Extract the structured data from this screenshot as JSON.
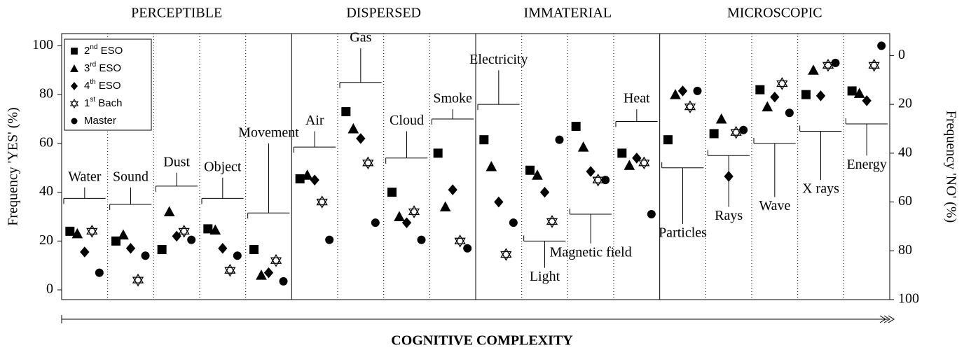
{
  "chart_data": {
    "type": "scatter",
    "ylabel": "Frequency 'YES' (%)",
    "y2label": "Frequency 'NO' (%)",
    "xlabel": "COGNITIVE COMPLEXITY",
    "groups": [
      {
        "name": "PERCEPTIBLE",
        "categories": [
          "Water",
          "Sound",
          "Dust",
          "Object",
          "Movement"
        ]
      },
      {
        "name": "DISPERSED",
        "categories": [
          "Air",
          "Gas",
          "Cloud",
          "Smoke"
        ]
      },
      {
        "name": "IMMATERIAL",
        "categories": [
          "Electricity",
          "Light",
          "Magnetic field",
          "Heat"
        ]
      },
      {
        "name": "MICROSCOPIC",
        "categories": [
          "Particles",
          "Rays",
          "Wave",
          "X rays",
          "Energy"
        ]
      }
    ],
    "series": [
      {
        "name": "2nd ESO",
        "marker": "square",
        "color": "#000000",
        "values": [
          24,
          20,
          16.5,
          25,
          16.5,
          45.5,
          73,
          40,
          56,
          61.5,
          49,
          67,
          56,
          61.5,
          64,
          82,
          80,
          81.5
        ]
      },
      {
        "name": "3rd ESO",
        "marker": "triangle",
        "color": "#000000",
        "values": [
          23,
          22.5,
          32,
          24.5,
          6,
          47,
          66,
          30,
          34,
          50.5,
          47,
          58.5,
          51,
          80,
          70,
          75,
          90,
          80.5
        ]
      },
      {
        "name": "4th ESO",
        "marker": "diamond",
        "color": "#000000",
        "values": [
          15.5,
          17,
          22,
          17,
          7,
          45,
          62,
          27.5,
          41,
          36,
          40,
          48.5,
          54,
          81.5,
          46.5,
          79,
          79.5,
          77.5
        ]
      },
      {
        "name": "1st Bach",
        "marker": "star",
        "color": "#000000",
        "values": [
          24,
          4,
          24,
          8,
          12,
          36,
          52,
          32,
          20,
          14.5,
          28,
          45,
          52,
          75,
          64.5,
          84.5,
          92,
          92
        ]
      },
      {
        "name": "Master",
        "marker": "circle",
        "color": "#000000",
        "values": [
          7,
          14,
          20.5,
          14,
          3.5,
          20.5,
          27.5,
          20.5,
          17,
          27.5,
          61.5,
          45,
          31,
          81.5,
          65.5,
          72.5,
          93,
          100
        ]
      }
    ],
    "ylim": [
      -4,
      105
    ],
    "yticks": [
      0,
      20,
      40,
      60,
      80,
      100
    ],
    "y2lim": [
      100,
      -9
    ],
    "y2ticks": [
      0,
      20,
      40,
      60,
      80,
      100
    ],
    "legend": "upper left"
  }
}
